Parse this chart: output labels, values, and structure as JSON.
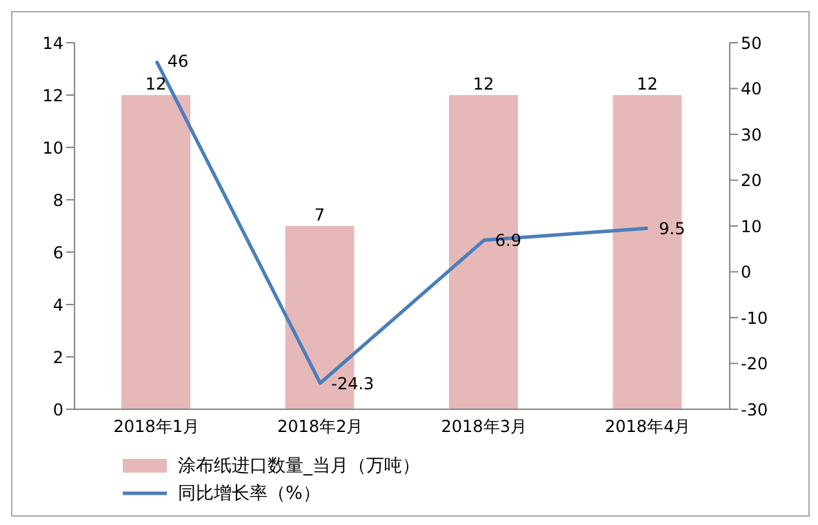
{
  "chart_data": {
    "type": "bar",
    "categories": [
      "2018年1月",
      "2018年2月",
      "2018年3月",
      "2018年4月"
    ],
    "series": [
      {
        "name": "涂布纸进口数量_当月（万吨）",
        "color": "#e6b9b8",
        "values": [
          12,
          7,
          12,
          12
        ]
      },
      {
        "name": "同比增长率（%）",
        "type": "line",
        "axis": "y2",
        "color": "#4a7ebb",
        "values": [
          46,
          -24.3,
          6.9,
          9.5
        ],
        "marker": "none"
      }
    ],
    "ylim": [
      0,
      14
    ],
    "yticks": [
      0,
      2,
      4,
      6,
      8,
      10,
      12,
      14
    ],
    "y2lim": [
      -30,
      50
    ],
    "y2ticks": [
      -30,
      -20,
      -10,
      0,
      10,
      20,
      30,
      40,
      50
    ],
    "data_labels": true,
    "grid": false,
    "legend": "bottom left"
  }
}
